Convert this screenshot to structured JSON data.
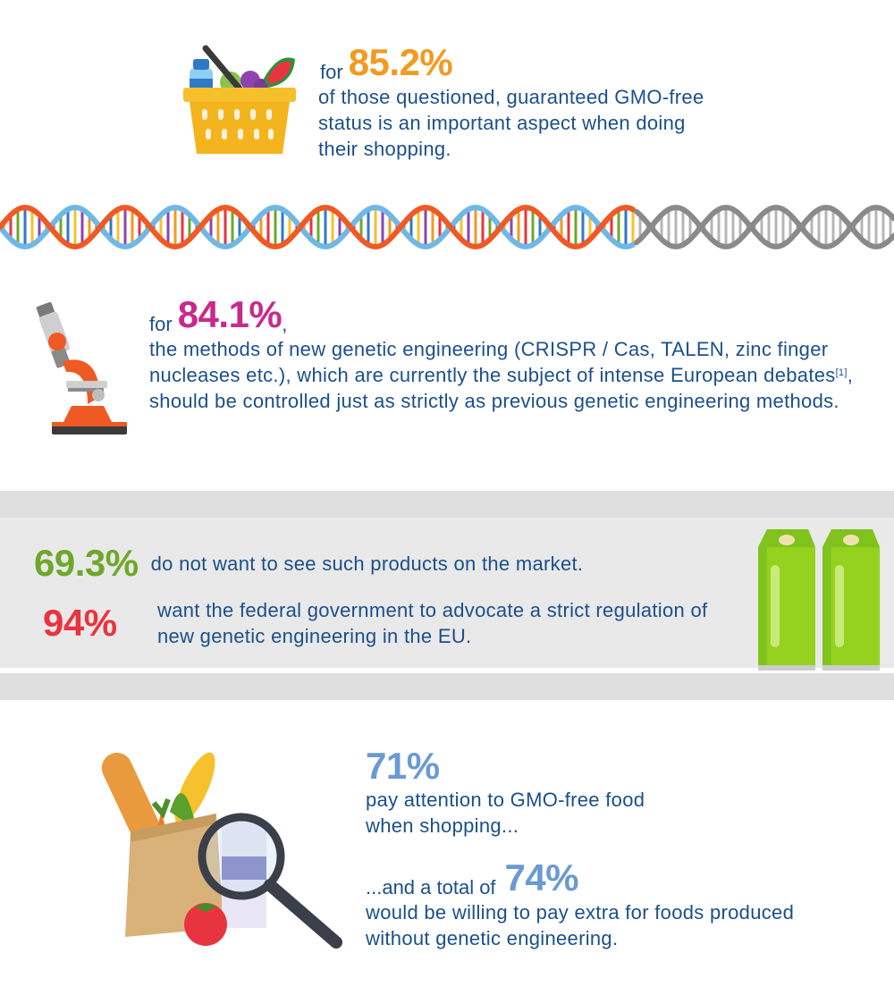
{
  "section1": {
    "prefix": "for",
    "percent": "85.2%",
    "text": "of those questioned, guaranteed GMO-free status is an important aspect when doing their shopping.",
    "percent_color": "#f29a1f",
    "icon": "shopping-basket-icon"
  },
  "divider": {
    "icon": "dna-helix-icon"
  },
  "section2": {
    "prefix": "for",
    "percent": "84.1%",
    "suffix": ",",
    "text_before_ref": "the methods of new genetic engineering (CRISPR / Cas, TALEN, zinc finger nucleases etc.), which are currently the subject of intense European debates",
    "ref": "[1]",
    "text_after_ref": ", should be controlled just as strictly as previous genetic engineering methods.",
    "percent_color": "#c82a8a",
    "icon": "microscope-icon"
  },
  "section3": {
    "stat1": {
      "percent": "69.3%",
      "text": "do not want to see such products on the market.",
      "color": "#6ea82a"
    },
    "stat2": {
      "percent": "94%",
      "text": "want the federal government to advocate a strict regulation of new genetic engineering in the EU.",
      "color": "#e8343f"
    },
    "icon": "juice-cartons-icon"
  },
  "section4": {
    "stat1": {
      "percent": "71%",
      "text": "pay attention to GMO-free food when shopping..."
    },
    "stat2": {
      "prefix": "...and a total of",
      "percent": "74%",
      "text": "would be willing to pay extra for foods produced without genetic engineering."
    },
    "color": "#6a9ad3",
    "icon": "grocery-bag-magnifier-icon"
  }
}
